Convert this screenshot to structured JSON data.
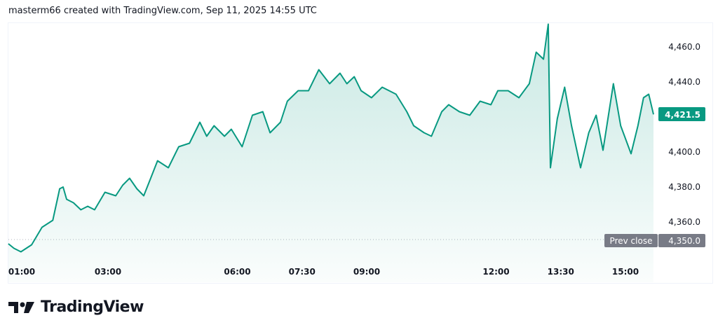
{
  "header": {
    "caption": "masterm66 created with TradingView.com, Sep 11, 2025 14:55 UTC"
  },
  "logo": {
    "text": "TradingView"
  },
  "colors": {
    "line": "#089981",
    "prev_close_bg": "#787b86",
    "last_price_bg": "#089981"
  },
  "chart_data": {
    "type": "area",
    "title": "",
    "xlabel": "",
    "ylabel": "",
    "x_unit": "hour of day (UTC)",
    "x_ticks": [
      {
        "t": 1,
        "label": "01:00"
      },
      {
        "t": 3,
        "label": "03:00"
      },
      {
        "t": 6,
        "label": "06:00"
      },
      {
        "t": 7.5,
        "label": "07:30"
      },
      {
        "t": 9,
        "label": "09:00"
      },
      {
        "t": 12,
        "label": "12:00"
      },
      {
        "t": 13.5,
        "label": "13:30"
      },
      {
        "t": 15,
        "label": "15:00"
      }
    ],
    "y_ticks": [
      {
        "v": 4460,
        "label": "4,460.0"
      },
      {
        "v": 4440,
        "label": "4,440.0"
      },
      {
        "v": 4400,
        "label": "4,400.0"
      },
      {
        "v": 4380,
        "label": "4,380.0"
      },
      {
        "v": 4360,
        "label": "4,360.0"
      }
    ],
    "ylim": [
      4340,
      4475
    ],
    "prev_close": {
      "label": "Prev close",
      "value": 4350.0,
      "value_label": "4,350.0"
    },
    "last_price": {
      "value": 4421.5,
      "label": "4,421.5"
    },
    "series": [
      {
        "name": "price",
        "points": [
          [
            0.69,
            4347.6
          ],
          [
            0.82,
            4345
          ],
          [
            0.98,
            4343
          ],
          [
            1.23,
            4347
          ],
          [
            1.47,
            4357
          ],
          [
            1.72,
            4361
          ],
          [
            1.88,
            4379
          ],
          [
            1.96,
            4380
          ],
          [
            2.04,
            4373
          ],
          [
            2.2,
            4371
          ],
          [
            2.37,
            4367
          ],
          [
            2.53,
            4369
          ],
          [
            2.69,
            4367
          ],
          [
            2.93,
            4377
          ],
          [
            3.18,
            4375
          ],
          [
            3.34,
            4381
          ],
          [
            3.5,
            4385
          ],
          [
            3.67,
            4379
          ],
          [
            3.83,
            4375
          ],
          [
            3.99,
            4385
          ],
          [
            4.15,
            4395
          ],
          [
            4.4,
            4391
          ],
          [
            4.64,
            4403
          ],
          [
            4.89,
            4405
          ],
          [
            5.13,
            4417
          ],
          [
            5.29,
            4409
          ],
          [
            5.46,
            4415
          ],
          [
            5.7,
            4409
          ],
          [
            5.86,
            4413
          ],
          [
            6.11,
            4403
          ],
          [
            6.35,
            4421
          ],
          [
            6.59,
            4423
          ],
          [
            6.76,
            4411
          ],
          [
            7.0,
            4417
          ],
          [
            7.16,
            4429
          ],
          [
            7.41,
            4435
          ],
          [
            7.65,
            4435
          ],
          [
            7.89,
            4447
          ],
          [
            8.14,
            4439
          ],
          [
            8.38,
            4445
          ],
          [
            8.54,
            4439
          ],
          [
            8.71,
            4443
          ],
          [
            8.87,
            4435
          ],
          [
            9.11,
            4431
          ],
          [
            9.36,
            4437
          ],
          [
            9.68,
            4433
          ],
          [
            9.93,
            4423
          ],
          [
            10.09,
            4415
          ],
          [
            10.33,
            4411
          ],
          [
            10.5,
            4409
          ],
          [
            10.74,
            4423
          ],
          [
            10.9,
            4427
          ],
          [
            11.15,
            4423
          ],
          [
            11.39,
            4421
          ],
          [
            11.63,
            4429
          ],
          [
            11.88,
            4427
          ],
          [
            12.04,
            4435
          ],
          [
            12.28,
            4435
          ],
          [
            12.53,
            4431
          ],
          [
            12.77,
            4439
          ],
          [
            12.93,
            4457
          ],
          [
            13.1,
            4453
          ],
          [
            13.21,
            4473
          ],
          [
            13.26,
            4391
          ],
          [
            13.42,
            4419
          ],
          [
            13.59,
            4437
          ],
          [
            13.75,
            4415
          ],
          [
            13.96,
            4391
          ],
          [
            14.15,
            4411
          ],
          [
            14.32,
            4421
          ],
          [
            14.48,
            4401
          ],
          [
            14.72,
            4439
          ],
          [
            14.89,
            4415
          ],
          [
            15.13,
            4399
          ],
          [
            15.29,
            4415
          ],
          [
            15.42,
            4431
          ],
          [
            15.54,
            4433
          ],
          [
            15.65,
            4421.5
          ]
        ]
      }
    ]
  }
}
